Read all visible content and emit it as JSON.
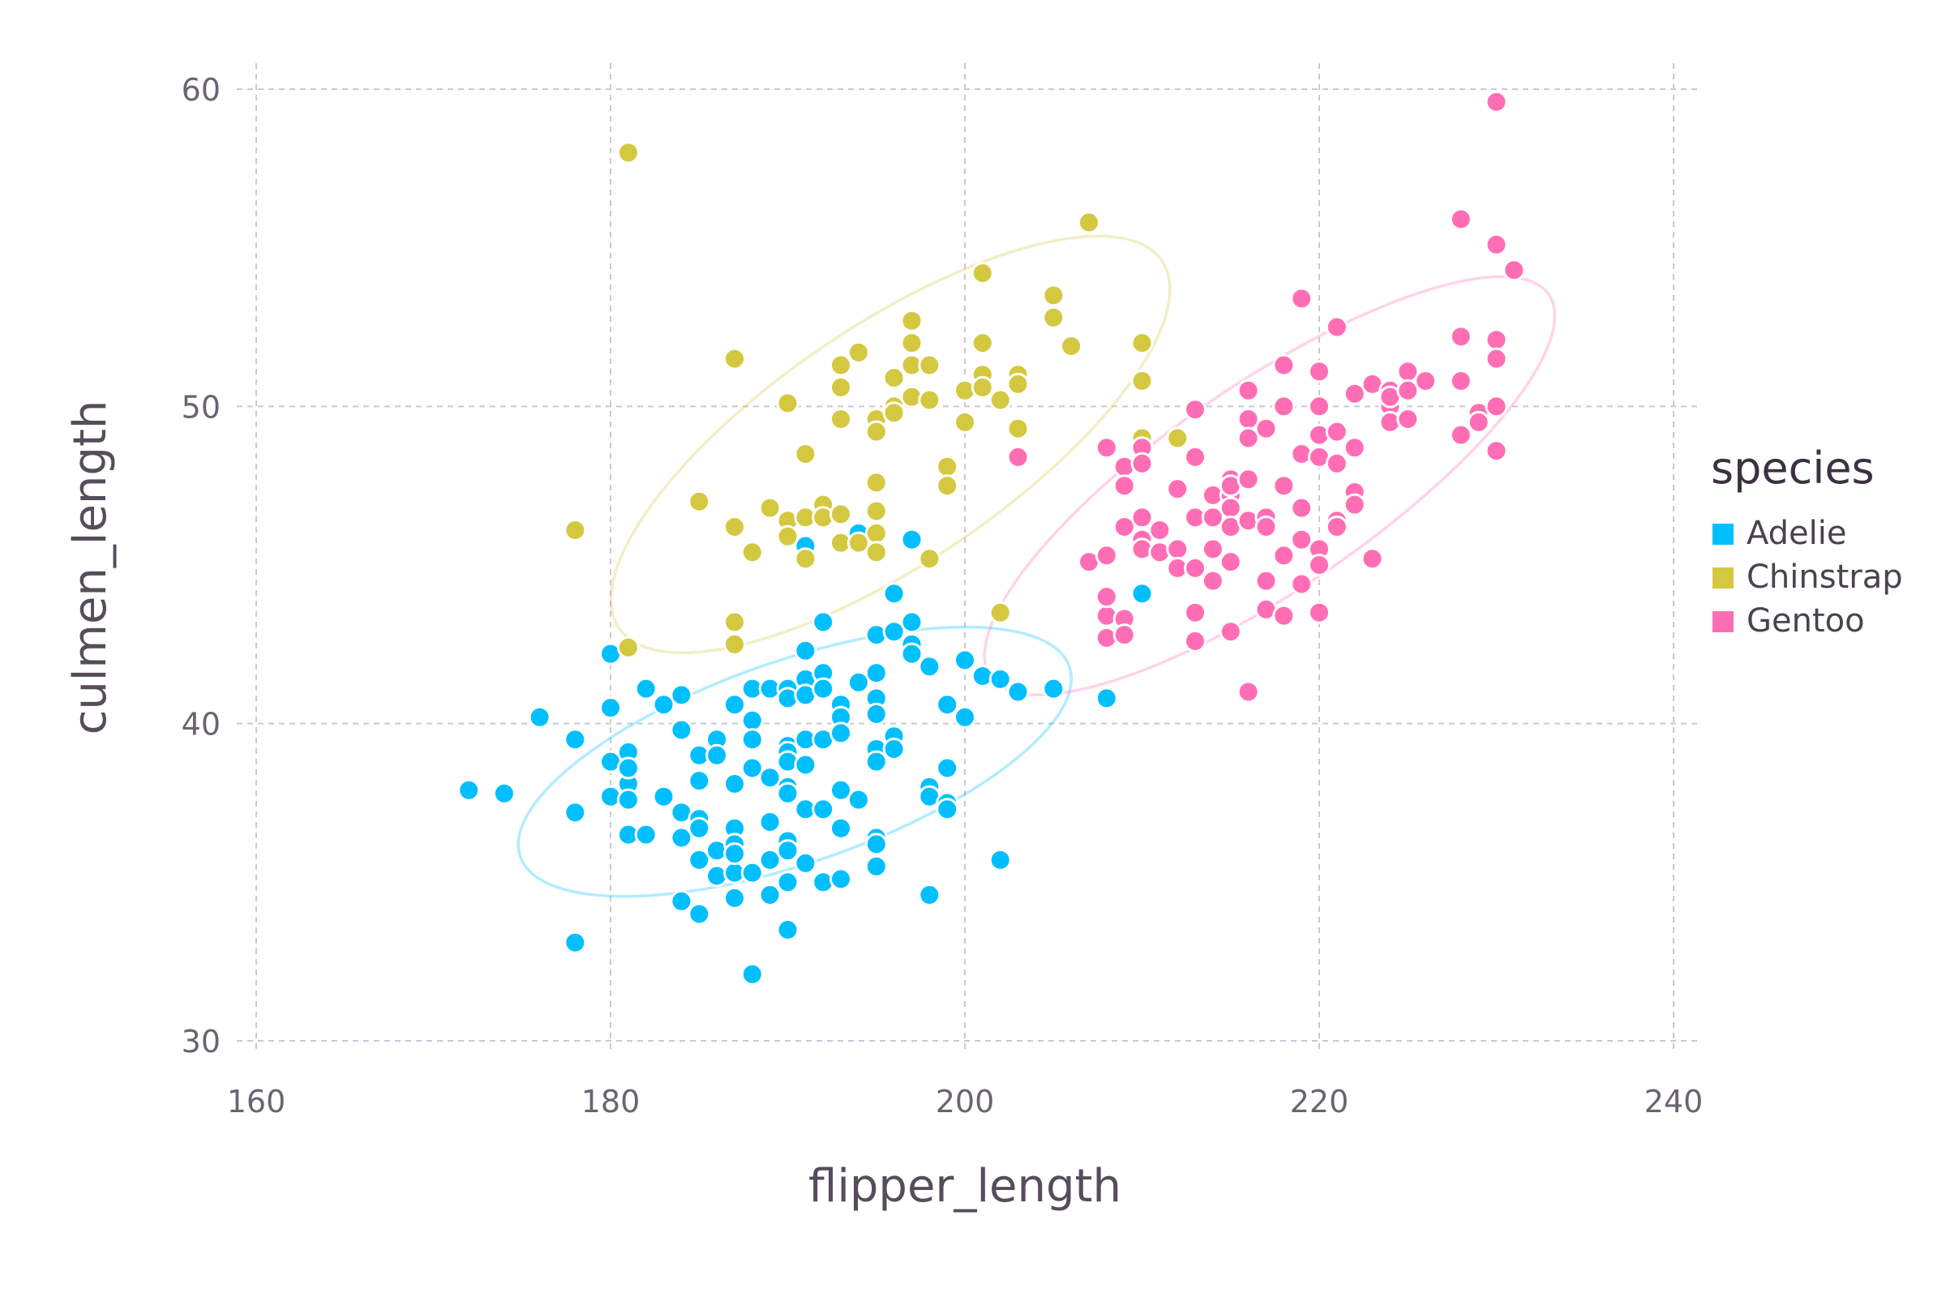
{
  "chart_data": {
    "type": "scatter",
    "title": "",
    "xlabel": "flipper_length",
    "ylabel": "culmen_length",
    "xlim": [
      160,
      240
    ],
    "ylim": [
      30,
      60
    ],
    "x_ticks": [
      "160",
      "180",
      "200",
      "220",
      "240"
    ],
    "y_ticks": [
      "30",
      "40",
      "50",
      "60"
    ],
    "grid": true,
    "legend": {
      "title": "species",
      "placement": "right"
    },
    "series": [
      {
        "name": "Adelie",
        "color": "#00bfff",
        "ellipse": {
          "cx": 190.4,
          "cy": 38.8,
          "rx_angle_deg": 19.1,
          "a": 16.4,
          "b": 5.7
        },
        "points": [
          [
            172,
            37.9
          ],
          [
            174,
            37.8
          ],
          [
            176,
            40.2
          ],
          [
            178,
            39.5
          ],
          [
            178,
            37.2
          ],
          [
            178,
            33.1
          ],
          [
            180,
            42.2
          ],
          [
            180,
            40.5
          ],
          [
            180,
            38.8
          ],
          [
            180,
            37.7
          ],
          [
            181,
            39.1
          ],
          [
            181,
            38.1
          ],
          [
            181,
            37.6
          ],
          [
            181,
            36.5
          ],
          [
            181,
            38.6
          ],
          [
            182,
            36.5
          ],
          [
            182,
            41.1
          ],
          [
            183,
            40.6
          ],
          [
            183,
            37.7
          ],
          [
            184,
            40.9
          ],
          [
            184,
            39.8
          ],
          [
            184,
            37.2
          ],
          [
            184,
            36.4
          ],
          [
            184,
            34.4
          ],
          [
            185,
            39.0
          ],
          [
            185,
            38.2
          ],
          [
            185,
            37.0
          ],
          [
            185,
            36.7
          ],
          [
            185,
            35.7
          ],
          [
            185,
            34.0
          ],
          [
            186,
            39.5
          ],
          [
            186,
            39.0
          ],
          [
            186,
            36.0
          ],
          [
            186,
            35.2
          ],
          [
            187,
            40.6
          ],
          [
            187,
            38.1
          ],
          [
            187,
            36.7
          ],
          [
            187,
            36.2
          ],
          [
            187,
            35.3
          ],
          [
            187,
            34.5
          ],
          [
            187,
            35.9
          ],
          [
            188,
            41.1
          ],
          [
            188,
            40.1
          ],
          [
            188,
            39.5
          ],
          [
            188,
            38.6
          ],
          [
            188,
            35.3
          ],
          [
            188,
            32.1
          ],
          [
            189,
            41.1
          ],
          [
            189,
            38.3
          ],
          [
            189,
            36.9
          ],
          [
            189,
            35.7
          ],
          [
            189,
            34.6
          ],
          [
            190,
            41.1
          ],
          [
            190,
            40.8
          ],
          [
            190,
            39.3
          ],
          [
            190,
            39.1
          ],
          [
            190,
            38.8
          ],
          [
            190,
            38.0
          ],
          [
            190,
            37.8
          ],
          [
            190,
            36.3
          ],
          [
            190,
            36.0
          ],
          [
            190,
            35.0
          ],
          [
            190,
            33.5
          ],
          [
            191,
            45.6
          ],
          [
            191,
            42.3
          ],
          [
            191,
            41.4
          ],
          [
            191,
            40.9
          ],
          [
            191,
            39.5
          ],
          [
            191,
            38.7
          ],
          [
            191,
            37.3
          ],
          [
            191,
            35.6
          ],
          [
            192,
            43.2
          ],
          [
            192,
            41.6
          ],
          [
            192,
            41.1
          ],
          [
            192,
            39.5
          ],
          [
            192,
            37.3
          ],
          [
            192,
            35.0
          ],
          [
            193,
            40.6
          ],
          [
            193,
            40.2
          ],
          [
            193,
            39.7
          ],
          [
            193,
            37.9
          ],
          [
            193,
            36.7
          ],
          [
            193,
            35.1
          ],
          [
            194,
            46.0
          ],
          [
            194,
            41.3
          ],
          [
            194,
            37.6
          ],
          [
            195,
            42.8
          ],
          [
            195,
            41.6
          ],
          [
            195,
            40.8
          ],
          [
            195,
            40.3
          ],
          [
            195,
            39.2
          ],
          [
            195,
            38.8
          ],
          [
            195,
            36.4
          ],
          [
            195,
            36.2
          ],
          [
            195,
            35.5
          ],
          [
            196,
            44.1
          ],
          [
            196,
            42.9
          ],
          [
            196,
            39.6
          ],
          [
            196,
            39.2
          ],
          [
            197,
            45.8
          ],
          [
            197,
            43.2
          ],
          [
            197,
            42.5
          ],
          [
            197,
            42.2
          ],
          [
            198,
            41.8
          ],
          [
            198,
            38.0
          ],
          [
            198,
            37.7
          ],
          [
            198,
            34.6
          ],
          [
            199,
            40.6
          ],
          [
            199,
            38.6
          ],
          [
            199,
            37.5
          ],
          [
            199,
            37.3
          ],
          [
            200,
            42.0
          ],
          [
            200,
            40.2
          ],
          [
            201,
            41.5
          ],
          [
            202,
            41.4
          ],
          [
            202,
            35.7
          ],
          [
            203,
            41.0
          ],
          [
            205,
            41.1
          ],
          [
            208,
            40.8
          ],
          [
            210,
            44.1
          ]
        ]
      },
      {
        "name": "Chinstrap",
        "color": "#d4c840",
        "ellipse": {
          "cx": 195.8,
          "cy": 48.8,
          "rx_angle_deg": 34.1,
          "a": 18.5,
          "b": 6.7
        },
        "points": [
          [
            178,
            46.1
          ],
          [
            181,
            58.0
          ],
          [
            181,
            42.4
          ],
          [
            185,
            47.0
          ],
          [
            187,
            51.5
          ],
          [
            187,
            46.2
          ],
          [
            187,
            43.2
          ],
          [
            187,
            42.5
          ],
          [
            188,
            45.4
          ],
          [
            189,
            46.8
          ],
          [
            190,
            50.1
          ],
          [
            190,
            46.4
          ],
          [
            190,
            45.9
          ],
          [
            191,
            48.5
          ],
          [
            191,
            46.5
          ],
          [
            191,
            45.2
          ],
          [
            192,
            46.9
          ],
          [
            192,
            46.5
          ],
          [
            193,
            51.3
          ],
          [
            193,
            50.6
          ],
          [
            193,
            49.6
          ],
          [
            193,
            46.6
          ],
          [
            193,
            45.7
          ],
          [
            194,
            51.7
          ],
          [
            194,
            45.7
          ],
          [
            195,
            49.6
          ],
          [
            195,
            49.2
          ],
          [
            195,
            47.6
          ],
          [
            195,
            46.7
          ],
          [
            195,
            46.0
          ],
          [
            195,
            45.4
          ],
          [
            196,
            50.9
          ],
          [
            196,
            50.0
          ],
          [
            196,
            49.8
          ],
          [
            197,
            52.7
          ],
          [
            197,
            52.0
          ],
          [
            197,
            51.3
          ],
          [
            197,
            50.3
          ],
          [
            198,
            51.3
          ],
          [
            198,
            50.2
          ],
          [
            198,
            45.2
          ],
          [
            199,
            48.1
          ],
          [
            199,
            47.5
          ],
          [
            200,
            50.5
          ],
          [
            200,
            49.5
          ],
          [
            201,
            54.2
          ],
          [
            201,
            52.0
          ],
          [
            201,
            51.0
          ],
          [
            201,
            50.6
          ],
          [
            202,
            50.2
          ],
          [
            202,
            43.5
          ],
          [
            203,
            51.0
          ],
          [
            203,
            50.7
          ],
          [
            203,
            49.3
          ],
          [
            205,
            53.5
          ],
          [
            205,
            52.8
          ],
          [
            206,
            51.9
          ],
          [
            207,
            55.8
          ],
          [
            210,
            52.0
          ],
          [
            210,
            50.8
          ],
          [
            210,
            49.0
          ],
          [
            212,
            49.0
          ]
        ]
      },
      {
        "name": "Gentoo",
        "color": "#ff6eb4",
        "ellipse": {
          "cx": 217.2,
          "cy": 47.5,
          "rx_angle_deg": 34.4,
          "a": 19.1,
          "b": 5.8
        },
        "points": [
          [
            203,
            48.4
          ],
          [
            207,
            45.1
          ],
          [
            208,
            48.7
          ],
          [
            208,
            45.3
          ],
          [
            208,
            43.4
          ],
          [
            208,
            42.7
          ],
          [
            208,
            44.0
          ],
          [
            209,
            48.1
          ],
          [
            209,
            47.5
          ],
          [
            209,
            46.2
          ],
          [
            209,
            43.3
          ],
          [
            209,
            42.8
          ],
          [
            210,
            48.7
          ],
          [
            210,
            48.2
          ],
          [
            210,
            46.5
          ],
          [
            210,
            45.8
          ],
          [
            210,
            45.5
          ],
          [
            211,
            46.1
          ],
          [
            211,
            45.4
          ],
          [
            212,
            47.4
          ],
          [
            212,
            45.5
          ],
          [
            212,
            44.9
          ],
          [
            213,
            49.9
          ],
          [
            213,
            48.4
          ],
          [
            213,
            46.5
          ],
          [
            213,
            44.9
          ],
          [
            213,
            43.5
          ],
          [
            213,
            42.6
          ],
          [
            214,
            47.2
          ],
          [
            214,
            45.5
          ],
          [
            214,
            44.5
          ],
          [
            214,
            46.5
          ],
          [
            215,
            47.7
          ],
          [
            215,
            47.2
          ],
          [
            215,
            46.8
          ],
          [
            215,
            46.2
          ],
          [
            215,
            45.1
          ],
          [
            215,
            42.9
          ],
          [
            215,
            47.5
          ],
          [
            216,
            50.5
          ],
          [
            216,
            49.6
          ],
          [
            216,
            49.0
          ],
          [
            216,
            47.7
          ],
          [
            216,
            46.4
          ],
          [
            216,
            41.0
          ],
          [
            217,
            49.3
          ],
          [
            217,
            46.5
          ],
          [
            217,
            46.2
          ],
          [
            217,
            44.5
          ],
          [
            217,
            43.6
          ],
          [
            218,
            51.3
          ],
          [
            218,
            50.0
          ],
          [
            218,
            47.5
          ],
          [
            218,
            45.3
          ],
          [
            218,
            43.4
          ],
          [
            219,
            53.4
          ],
          [
            219,
            48.5
          ],
          [
            219,
            46.8
          ],
          [
            219,
            45.8
          ],
          [
            219,
            44.4
          ],
          [
            220,
            51.1
          ],
          [
            220,
            50.0
          ],
          [
            220,
            49.1
          ],
          [
            220,
            48.4
          ],
          [
            220,
            45.5
          ],
          [
            220,
            45.0
          ],
          [
            220,
            43.5
          ],
          [
            221,
            52.5
          ],
          [
            221,
            49.2
          ],
          [
            221,
            48.2
          ],
          [
            221,
            46.4
          ],
          [
            221,
            46.2
          ],
          [
            222,
            50.4
          ],
          [
            222,
            48.7
          ],
          [
            222,
            47.3
          ],
          [
            222,
            46.9
          ],
          [
            223,
            50.7
          ],
          [
            223,
            45.2
          ],
          [
            224,
            50.5
          ],
          [
            224,
            50.0
          ],
          [
            224,
            49.5
          ],
          [
            224,
            50.3
          ],
          [
            225,
            51.1
          ],
          [
            225,
            50.5
          ],
          [
            225,
            49.6
          ],
          [
            226,
            50.8
          ],
          [
            228,
            55.9
          ],
          [
            228,
            52.2
          ],
          [
            228,
            50.8
          ],
          [
            228,
            49.1
          ],
          [
            229,
            49.8
          ],
          [
            229,
            49.5
          ],
          [
            230,
            59.6
          ],
          [
            230,
            55.1
          ],
          [
            230,
            52.1
          ],
          [
            230,
            51.5
          ],
          [
            230,
            50.0
          ],
          [
            230,
            48.6
          ],
          [
            231,
            54.3
          ]
        ]
      }
    ]
  }
}
